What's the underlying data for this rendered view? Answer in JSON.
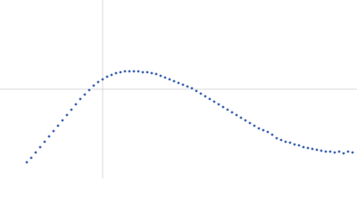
{
  "chart_data": {
    "type": "scatter",
    "x": [
      30,
      35,
      40,
      45,
      50,
      55,
      60,
      65,
      70,
      75,
      80,
      85,
      90,
      95,
      100,
      105,
      110,
      115,
      120,
      125,
      130,
      135,
      140,
      145,
      150,
      155,
      160,
      165,
      170,
      175,
      180,
      185,
      190,
      195,
      200,
      205,
      210,
      215,
      220,
      225,
      230,
      235,
      240,
      245,
      250,
      255,
      260,
      265,
      270,
      275,
      280,
      285,
      290,
      295,
      300,
      305,
      310,
      315,
      320,
      325,
      330,
      335,
      340,
      345,
      350,
      355,
      360,
      365,
      370,
      375,
      380,
      385,
      390,
      395
    ],
    "series": [
      {
        "color": "#3f66b2",
        "values": [
          18,
          23,
          29,
          35,
          41,
          47,
          53,
          59,
          65,
          71,
          77,
          83,
          89,
          94,
          99,
          104,
          108,
          111,
          114,
          116,
          118,
          119,
          120,
          120,
          120,
          120,
          119,
          119,
          118,
          117,
          115,
          113,
          111,
          109,
          107,
          105,
          103,
          101,
          98,
          95,
          92,
          89,
          86,
          83,
          80,
          77,
          74,
          71,
          68,
          65,
          62,
          59,
          56,
          54,
          52,
          49,
          45,
          43,
          41,
          40,
          38,
          37,
          35,
          34,
          33,
          32,
          31,
          30,
          30,
          29,
          30,
          28,
          30,
          29
        ]
      }
    ],
    "xlim": [
      0,
      400
    ],
    "ylim": [
      0,
      200
    ],
    "xticks": [
      115
    ],
    "yticks": [
      100
    ],
    "grid": true,
    "tick_labels": false
  }
}
